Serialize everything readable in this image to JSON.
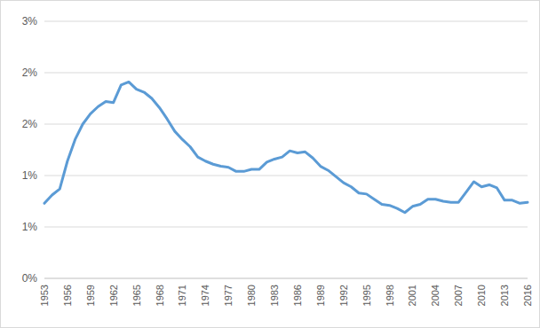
{
  "chart_data": {
    "type": "line",
    "categories": [
      "1953",
      null,
      null,
      "1956",
      null,
      null,
      "1959",
      null,
      null,
      "1962",
      null,
      null,
      "1965",
      null,
      null,
      "1968",
      null,
      null,
      "1971",
      null,
      null,
      "1974",
      null,
      null,
      "1977",
      null,
      null,
      "1980",
      null,
      null,
      "1983",
      null,
      null,
      "1986",
      null,
      null,
      "1989",
      null,
      null,
      "1992",
      null,
      null,
      "1995",
      null,
      null,
      "1998",
      null,
      null,
      "2001",
      null,
      null,
      "2004",
      null,
      null,
      "2007",
      null,
      null,
      "2010",
      null,
      null,
      "2013",
      null,
      null,
      "2016"
    ],
    "values": [
      0.73,
      0.81,
      0.87,
      1.14,
      1.35,
      1.5,
      1.6,
      1.67,
      1.72,
      1.71,
      1.88,
      1.91,
      1.84,
      1.81,
      1.75,
      1.66,
      1.55,
      1.43,
      1.35,
      1.28,
      1.18,
      1.14,
      1.11,
      1.09,
      1.08,
      1.04,
      1.04,
      1.06,
      1.06,
      1.13,
      1.16,
      1.18,
      1.24,
      1.22,
      1.23,
      1.17,
      1.09,
      1.05,
      0.99,
      0.93,
      0.89,
      0.83,
      0.82,
      0.77,
      0.72,
      0.71,
      0.68,
      0.64,
      0.7,
      0.72,
      0.77,
      0.77,
      0.75,
      0.74,
      0.74,
      0.84,
      0.94,
      0.89,
      0.91,
      0.88,
      0.76,
      0.76,
      0.73,
      0.74
    ],
    "color": "#5b9bd5",
    "ylim": [
      0,
      2.5
    ],
    "yticks": [
      {
        "value": 0,
        "label": "0%"
      },
      {
        "value": 0.5,
        "label": "1%"
      },
      {
        "value": 1,
        "label": "1%"
      },
      {
        "value": 1.5,
        "label": "2%"
      },
      {
        "value": 2,
        "label": "2%"
      },
      {
        "value": 2.5,
        "label": "3%"
      }
    ],
    "grid": true
  }
}
